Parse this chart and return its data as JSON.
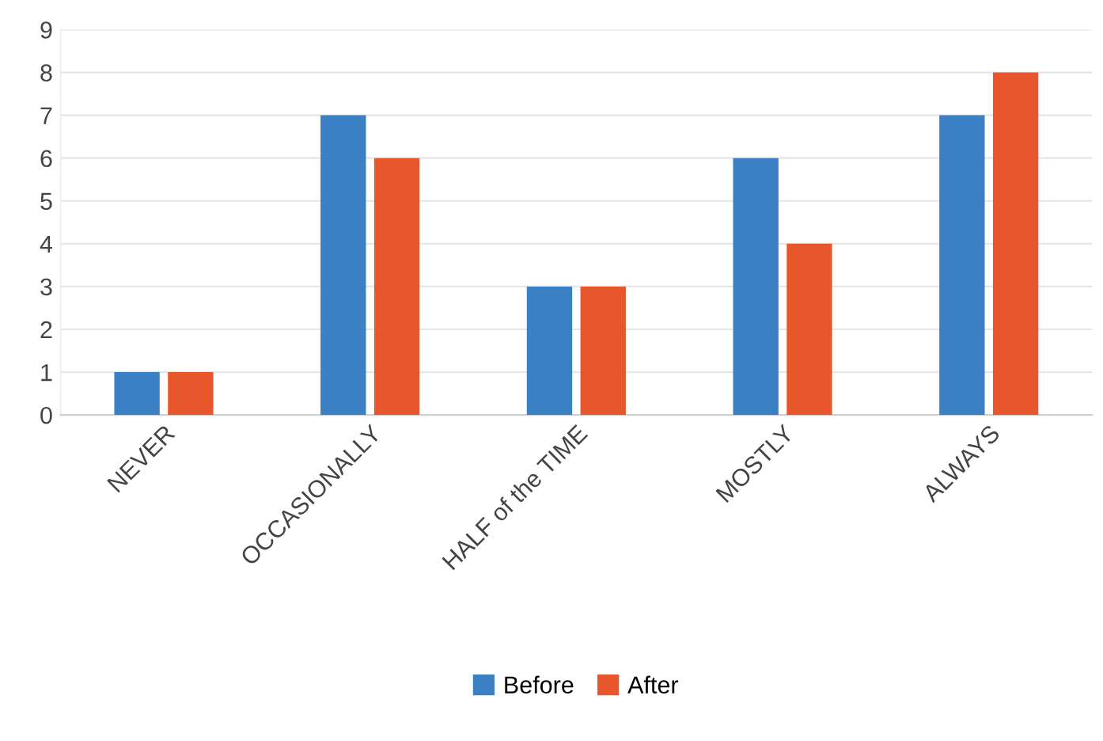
{
  "chart_data": {
    "type": "bar",
    "categories": [
      "NEVER",
      "OCCASIONALLY",
      "HALF of the TIME",
      "MOSTLY",
      "ALWAYS"
    ],
    "series": [
      {
        "name": "Before",
        "color": "#3b7fc4",
        "values": [
          1,
          7,
          3,
          6,
          7
        ]
      },
      {
        "name": "After",
        "color": "#e8572b",
        "values": [
          1,
          6,
          3,
          4,
          8
        ]
      }
    ],
    "ylim": [
      0,
      9
    ],
    "yticks": [
      0,
      1,
      2,
      3,
      4,
      5,
      6,
      7,
      8,
      9
    ],
    "grid": "y",
    "legend": "bottom"
  }
}
